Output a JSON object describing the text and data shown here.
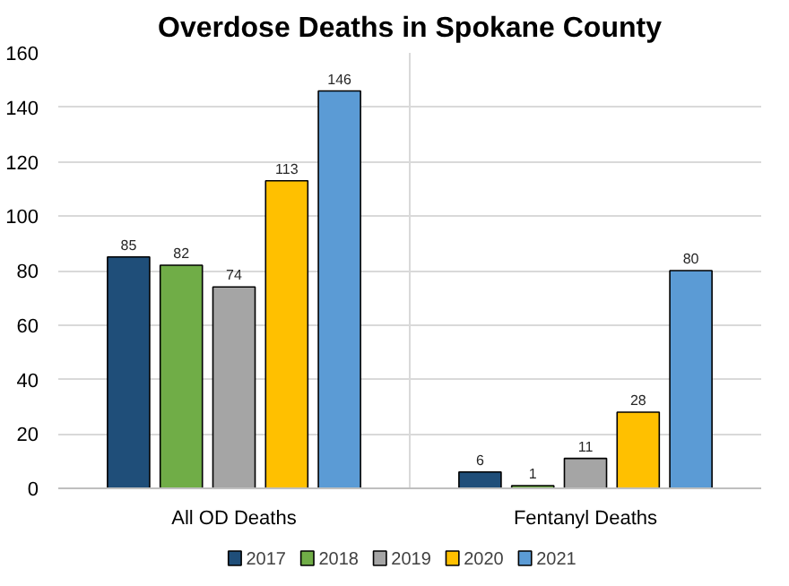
{
  "chart_data": {
    "type": "bar",
    "title": "Overdose Deaths in Spokane County",
    "categories": [
      "All OD Deaths",
      "Fentanyl Deaths"
    ],
    "series": [
      {
        "name": "2017",
        "color": "#1f4e79",
        "values": [
          85,
          6
        ]
      },
      {
        "name": "2018",
        "color": "#70ad47",
        "values": [
          82,
          1
        ]
      },
      {
        "name": "2019",
        "color": "#a5a5a5",
        "values": [
          74,
          11
        ]
      },
      {
        "name": "2020",
        "color": "#ffc000",
        "values": [
          113,
          28
        ]
      },
      {
        "name": "2021",
        "color": "#5b9bd5",
        "values": [
          146,
          80
        ]
      }
    ],
    "ylim": [
      0,
      160
    ],
    "yticks": [
      0,
      20,
      40,
      60,
      80,
      100,
      120,
      140,
      160
    ],
    "grid": true,
    "legend": "bottom",
    "data_labels": true
  }
}
